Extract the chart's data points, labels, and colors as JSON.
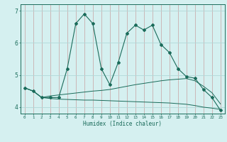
{
  "xlabel": "Humidex (Indice chaleur)",
  "x": [
    0,
    1,
    2,
    3,
    4,
    5,
    6,
    7,
    8,
    9,
    10,
    11,
    12,
    13,
    14,
    15,
    16,
    17,
    18,
    19,
    20,
    21,
    22,
    23
  ],
  "main_y": [
    4.6,
    4.5,
    4.3,
    4.3,
    4.3,
    5.2,
    6.6,
    6.9,
    6.6,
    5.2,
    4.7,
    5.4,
    6.3,
    6.55,
    6.4,
    6.55,
    5.95,
    5.7,
    5.2,
    4.95,
    4.9,
    4.55,
    4.3,
    3.9
  ],
  "upper_y": [
    4.6,
    4.5,
    4.3,
    4.35,
    4.38,
    4.41,
    4.44,
    4.47,
    4.5,
    4.52,
    4.55,
    4.6,
    4.65,
    4.7,
    4.74,
    4.78,
    4.82,
    4.85,
    4.87,
    4.89,
    4.82,
    4.65,
    4.45,
    4.1
  ],
  "lower_y": [
    4.6,
    4.5,
    4.3,
    4.27,
    4.25,
    4.24,
    4.23,
    4.22,
    4.22,
    4.21,
    4.2,
    4.19,
    4.18,
    4.17,
    4.16,
    4.15,
    4.14,
    4.13,
    4.11,
    4.09,
    4.05,
    4.0,
    3.97,
    3.93
  ],
  "line_color": "#1a6b5a",
  "bg_color": "#d5f0f0",
  "vgrid_color": "#c8a0a0",
  "hgrid_color": "#b0d8d8",
  "ylim": [
    3.8,
    7.2
  ],
  "yticks": [
    4,
    5,
    6,
    7
  ],
  "xticks": [
    0,
    1,
    2,
    3,
    4,
    5,
    6,
    7,
    8,
    9,
    10,
    11,
    12,
    13,
    14,
    15,
    16,
    17,
    18,
    19,
    20,
    21,
    22,
    23
  ]
}
